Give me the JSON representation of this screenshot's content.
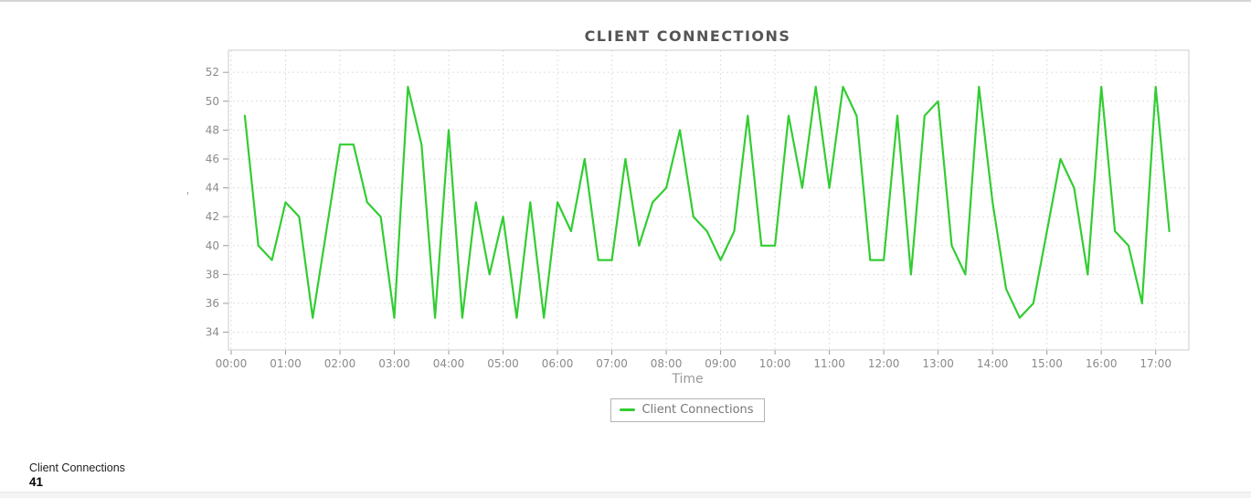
{
  "chart": {
    "title": "CLIENT CONNECTIONS",
    "x_axis_title": "Time",
    "y_axis_mark": "'",
    "legend": {
      "label": "Client Connections"
    }
  },
  "footer": {
    "label": "Client Connections",
    "value": "41"
  },
  "colors": {
    "series_green": "#32CD32",
    "grid": "#dfdfdf",
    "plot_border": "#cccccc",
    "tick": "#999999",
    "tick_label": "#8a8a8a"
  },
  "chart_data": {
    "type": "line",
    "title": "CLIENT CONNECTIONS",
    "xlabel": "Time",
    "ylabel": "",
    "x_ticks": [
      "00:00",
      "01:00",
      "02:00",
      "03:00",
      "04:00",
      "05:00",
      "06:00",
      "07:00",
      "08:00",
      "09:00",
      "10:00",
      "11:00",
      "12:00",
      "13:00",
      "14:00",
      "15:00",
      "16:00",
      "17:00"
    ],
    "y_ticks": [
      34,
      36,
      38,
      40,
      42,
      44,
      46,
      48,
      50,
      52
    ],
    "ylim": [
      32.77,
      53.53
    ],
    "xlim_hours": [
      -0.05,
      17.61
    ],
    "grid": true,
    "legend_position": "bottom",
    "series": [
      {
        "name": "Client Connections",
        "color": "#32CD32",
        "start_time": "00:15",
        "interval_minutes": 15,
        "values": [
          49,
          40,
          39,
          43,
          42,
          35,
          41,
          47,
          47,
          43,
          42,
          35,
          51,
          47,
          35,
          48,
          35,
          43,
          38,
          42,
          35,
          43,
          35,
          43,
          41,
          46,
          39,
          39,
          46,
          40,
          43,
          44,
          48,
          42,
          41,
          39,
          41,
          49,
          40,
          40,
          49,
          44,
          51,
          44,
          51,
          49,
          39,
          39,
          49,
          38,
          49,
          50,
          40,
          38,
          51,
          43,
          37,
          35,
          36,
          41,
          46,
          44,
          38,
          51,
          41,
          40,
          36,
          51,
          41
        ]
      }
    ]
  }
}
